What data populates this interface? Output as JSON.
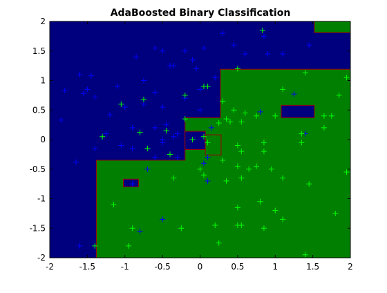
{
  "chart_data": {
    "type": "scatter",
    "title": "AdaBoosted Binary Classification",
    "background": "#00007f",
    "xlim": [
      -2,
      2
    ],
    "xticks": [
      -2,
      -1.5,
      -1,
      -0.5,
      0,
      0.5,
      1,
      1.5,
      2
    ],
    "ylim": [
      -2,
      2
    ],
    "yticks": [
      -2,
      -1.5,
      -1,
      -0.5,
      0,
      0.5,
      1,
      1.5,
      2
    ],
    "regions": [
      {
        "color": "#007f00",
        "edge": "#a00000",
        "points": [
          [
            -1.38,
            -2
          ],
          [
            -1.38,
            -0.35
          ],
          [
            -0.2,
            -0.35
          ],
          [
            -0.2,
            0.37
          ],
          [
            0.27,
            0.37
          ],
          [
            0.27,
            1.19
          ],
          [
            2,
            1.19
          ],
          [
            2,
            -2
          ]
        ]
      },
      {
        "color": "#00007f",
        "edge": "#a00000",
        "points": [
          [
            -0.2,
            -0.17
          ],
          [
            0.07,
            -0.17
          ],
          [
            0.07,
            0.14
          ],
          [
            -0.2,
            0.14
          ]
        ]
      },
      {
        "color": "#007f00",
        "edge": "#a00000",
        "points": [
          [
            0.07,
            -0.26
          ],
          [
            0.28,
            -0.26
          ],
          [
            0.28,
            0.08
          ],
          [
            0.07,
            0.08
          ]
        ]
      },
      {
        "color": "#00007f",
        "edge": "#a00000",
        "points": [
          [
            1.08,
            0.37
          ],
          [
            1.52,
            0.37
          ],
          [
            1.52,
            0.58
          ],
          [
            1.08,
            0.58
          ]
        ]
      },
      {
        "color": "#00007f",
        "edge": "#a00000",
        "points": [
          [
            -1.02,
            -0.8
          ],
          [
            -0.82,
            -0.8
          ],
          [
            -0.82,
            -0.67
          ],
          [
            -1.02,
            -0.67
          ]
        ]
      },
      {
        "color": "#007f00",
        "edge": "#a00000",
        "points": [
          [
            1.52,
            1.81
          ],
          [
            2,
            1.81
          ],
          [
            2,
            2
          ],
          [
            1.52,
            2
          ]
        ]
      }
    ],
    "series": [
      {
        "color": "#0000ff",
        "x": [
          -1.8,
          -1.6,
          -1.45,
          -1.55,
          -1.4,
          -1.2,
          -1.85,
          -1.65,
          -1.1,
          -0.85,
          -0.6,
          -0.5,
          -0.4,
          -0.35,
          -0.2,
          -0.1,
          -0.05,
          0.05,
          0.2,
          0.3,
          0.45,
          0.6,
          0.85,
          0.9,
          1.1,
          1.45,
          -0.75,
          -0.6,
          -1.0,
          -0.75,
          -0.5,
          -0.6,
          -0.9,
          -0.45,
          -0.3,
          -1.25,
          -1.4,
          -0.9,
          -1.05,
          -0.7,
          -0.6,
          -0.5,
          -0.35,
          -0.5,
          0.0,
          0.0,
          0.1,
          0.1,
          0.05,
          0.15,
          -0.8,
          -0.5,
          -0.9,
          -1.6,
          0.8,
          1.25,
          1.4,
          -0.3,
          -1.5,
          -0.2
        ],
        "y": [
          0.83,
          1.1,
          1.08,
          0.78,
          0.72,
          0.42,
          0.33,
          -0.38,
          0.9,
          1.4,
          1.55,
          1.5,
          1.25,
          1.25,
          1.5,
          1.35,
          1.2,
          1.55,
          1.05,
          1.8,
          1.6,
          1.45,
          1.75,
          1.45,
          1.45,
          1.6,
          1.0,
          0.8,
          0.55,
          0.6,
          0.55,
          0.2,
          0.2,
          0.25,
          0.1,
          0.1,
          -0.15,
          -0.15,
          -0.1,
          -0.5,
          -0.3,
          -0.05,
          0.05,
          0.0,
          0.5,
          0.85,
          -0.3,
          -0.7,
          -0.4,
          0.2,
          -1.55,
          -1.35,
          -0.75,
          -1.8,
          0.47,
          0.77,
          0.1,
          -0.3,
          0.85,
          0.7
        ]
      },
      {
        "color": "#00ff00",
        "x": [
          0.83,
          0.5,
          1.4,
          1.95,
          1.1,
          1.85,
          0.45,
          0.6,
          0.75,
          1.0,
          1.65,
          1.75,
          1.65,
          1.35,
          1.35,
          0.35,
          0.4,
          0.55,
          0.25,
          0.1,
          0.05,
          0.1,
          0.5,
          0.55,
          0.85,
          0.85,
          0.3,
          0.5,
          0.65,
          0.75,
          0.95,
          0.55,
          0.35,
          0.0,
          0.05,
          -0.35,
          -0.7,
          -0.4,
          -0.2,
          -0.1,
          -0.8,
          -1.3,
          -1.05,
          -0.75,
          -0.2,
          0.05,
          1.1,
          1.45,
          0.5,
          0.8,
          1.0,
          1.1,
          0.5,
          0.55,
          0.85,
          0.2,
          0.25,
          -0.25,
          -0.9,
          -1.15,
          -1.4,
          -0.95,
          1.4,
          1.8,
          1.95,
          0.3,
          -0.45
        ],
        "y": [
          1.85,
          1.2,
          1.13,
          1.05,
          0.85,
          0.75,
          0.5,
          0.45,
          0.4,
          0.4,
          0.4,
          0.4,
          0.2,
          0.1,
          -0.05,
          0.35,
          0.3,
          0.3,
          0.28,
          0.9,
          0.05,
          -0.05,
          -0.1,
          -0.2,
          -0.05,
          -0.2,
          -0.35,
          -0.45,
          -0.5,
          -0.45,
          -0.5,
          -0.65,
          -0.7,
          -0.5,
          -0.6,
          -0.65,
          -0.15,
          -0.25,
          0.35,
          0.0,
          0.12,
          0.05,
          0.6,
          0.68,
          0.75,
          0.9,
          -0.65,
          -0.75,
          -1.15,
          -1.05,
          -1.2,
          -1.35,
          -1.45,
          -1.45,
          -1.5,
          -1.45,
          -1.75,
          -1.5,
          -1.5,
          -1.1,
          -1.8,
          -1.8,
          -1.95,
          -1.25,
          -0.55,
          0.65,
          0.15
        ]
      }
    ]
  }
}
